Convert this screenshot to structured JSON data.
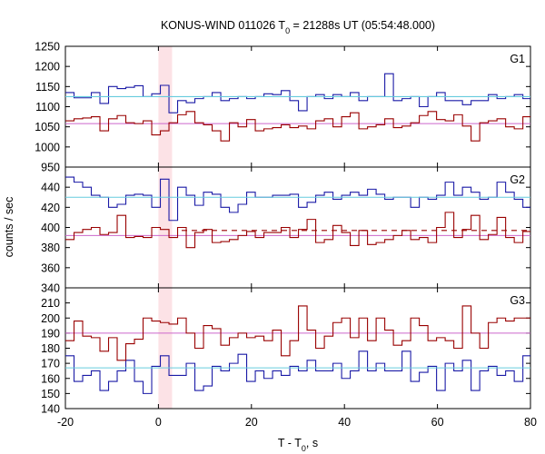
{
  "chart_data": {
    "type": "line",
    "title": "KONUS-WIND 011026 T",
    "title_sub": "0",
    "title_rest": " = 21288s UT (05:54:48.000)",
    "xlabel": "T - T",
    "xlabel_sub": "0",
    "xlabel_rest": ", s",
    "ylabel": "counts / sec",
    "xlim": [
      -20,
      80
    ],
    "xticks": [
      "-20",
      "0",
      "20",
      "40",
      "60",
      "80"
    ],
    "highlight_interval": [
      0,
      2.944
    ],
    "panels": [
      {
        "label": "G1",
        "ylim": [
          950,
          1250
        ],
        "yticks": [
          950,
          1000,
          1050,
          1100,
          1150,
          1200,
          1250
        ],
        "ytick_labels": [
          "950",
          "1000",
          "1050",
          "1100",
          "1150",
          "1200",
          "1250"
        ],
        "series": [
          {
            "color": "#1a1aa6",
            "values": [
              1135,
              1122,
              1122,
              1135,
              1108,
              1150,
              1145,
              1148,
              1152,
              1125,
              1132,
              1153,
              1085,
              1115,
              1110,
              1120,
              1125,
              1135,
              1115,
              1120,
              1125,
              1120,
              1125,
              1132,
              1130,
              1140,
              1115,
              1090,
              1125,
              1130,
              1120,
              1130,
              1125,
              1135,
              1115,
              1125,
              1125,
              1182,
              1115,
              1120,
              1125,
              1100,
              1125,
              1135,
              1115,
              1115,
              1105,
              1115,
              1115,
              1130,
              1120,
              1125,
              1130,
              1120
            ]
          },
          {
            "color": "#cc66cc",
            "values": [
              1058,
              1058,
              1058,
              1058,
              1058,
              1058,
              1058,
              1058,
              1058,
              1058,
              1058,
              1058,
              1058,
              1058,
              1058,
              1058,
              1058,
              1058,
              1058,
              1058,
              1058,
              1058,
              1058,
              1058,
              1058,
              1058,
              1058,
              1058,
              1058,
              1058,
              1058,
              1058,
              1058,
              1058,
              1058,
              1058,
              1058,
              1058,
              1058,
              1058,
              1058,
              1058,
              1058,
              1058,
              1058,
              1058,
              1058,
              1058,
              1058,
              1058,
              1058,
              1058,
              1058,
              1058
            ]
          },
          {
            "color": "#66ccdd",
            "values": [
              1125,
              1125,
              1125,
              1125,
              1125,
              1125,
              1125,
              1125,
              1125,
              1125,
              1125,
              1125,
              1125,
              1125,
              1125,
              1125,
              1125,
              1125,
              1125,
              1125,
              1125,
              1125,
              1125,
              1125,
              1125,
              1125,
              1125,
              1125,
              1125,
              1125,
              1125,
              1125,
              1125,
              1125,
              1125,
              1125,
              1125,
              1125,
              1125,
              1125,
              1125,
              1125,
              1125,
              1125,
              1125,
              1125,
              1125,
              1125,
              1125,
              1125,
              1125,
              1125,
              1125,
              1125
            ]
          },
          {
            "color": "#990000",
            "values": [
              1065,
              1070,
              1072,
              1075,
              1040,
              1070,
              1078,
              1060,
              1058,
              1065,
              1030,
              1040,
              1060,
              1080,
              1088,
              1060,
              1055,
              1040,
              1015,
              1060,
              1050,
              1068,
              1040,
              1045,
              1048,
              1055,
              1048,
              1052,
              1045,
              1065,
              1070,
              1050,
              1075,
              1085,
              1045,
              1050,
              1055,
              1070,
              1048,
              1052,
              1060,
              1078,
              1088,
              1068,
              1065,
              1080,
              1052,
              1015,
              1060,
              1065,
              1070,
              1050,
              1045,
              1075,
              1038
            ]
          }
        ]
      },
      {
        "label": "G2",
        "ylim": [
          340,
          460
        ],
        "yticks": [
          340,
          360,
          380,
          400,
          420,
          440
        ],
        "ytick_labels": [
          "340",
          "360",
          "380",
          "400",
          "420",
          "440"
        ],
        "series": [
          {
            "color": "#1a1aa6",
            "values": [
              450,
              445,
              440,
              432,
              430,
              420,
              423,
              432,
              433,
              432,
              420,
              448,
              407,
              440,
              432,
              422,
              435,
              433,
              420,
              415,
              423,
              435,
              430,
              430,
              432,
              432,
              433,
              420,
              425,
              432,
              435,
              428,
              432,
              435,
              432,
              438,
              433,
              428,
              430,
              430,
              420,
              430,
              428,
              432,
              445,
              432,
              440,
              435,
              428,
              430,
              445,
              435,
              428,
              420
            ]
          },
          {
            "color": "#cc66cc",
            "values": [
              392,
              392,
              392,
              392,
              392,
              392,
              392,
              392,
              392,
              392,
              392,
              392,
              392,
              392,
              392,
              392,
              392,
              392,
              392,
              392,
              392,
              392,
              392,
              392,
              392,
              392,
              392,
              392,
              392,
              392,
              392,
              392,
              392,
              392,
              392,
              392,
              392,
              392,
              392,
              392,
              392,
              392,
              392,
              392,
              392,
              392,
              392,
              392,
              392,
              392,
              392,
              392,
              392,
              392
            ]
          },
          {
            "color": "#66ccdd",
            "values": [
              430,
              430,
              430,
              430,
              430,
              430,
              430,
              430,
              430,
              430,
              430,
              430,
              430,
              430,
              430,
              430,
              430,
              430,
              430,
              430,
              430,
              430,
              430,
              430,
              430,
              430,
              430,
              430,
              430,
              430,
              430,
              430,
              430,
              430,
              430,
              430,
              430,
              430,
              430,
              430,
              430,
              430,
              430,
              430,
              430,
              430,
              430,
              430,
              430,
              430,
              430,
              430,
              430,
              430
            ]
          },
          {
            "color": "#990000",
            "values": [
              388,
              395,
              398,
              400,
              393,
              395,
              412,
              390,
              391,
              390,
              400,
              398,
              390,
              400,
              380,
              395,
              398,
              385,
              386,
              388,
              392,
              396,
              390,
              395,
              395,
              400,
              390,
              398,
              408,
              385,
              388,
              402,
              395,
              382,
              397,
              383,
              385,
              388,
              392,
              397,
              388,
              390,
              385,
              400,
              415,
              390,
              398,
              412,
              388,
              393,
              410,
              390,
              385,
              396,
              370
            ]
          }
        ],
        "dashed_line": {
          "color": "#990000",
          "x_from": 5,
          "value": 397
        }
      },
      {
        "label": "G3",
        "ylim": [
          140,
          220
        ],
        "yticks": [
          140,
          150,
          160,
          170,
          180,
          190,
          200,
          210,
          220
        ],
        "ytick_labels": [
          "140",
          "150",
          "160",
          "170",
          "180",
          "190",
          "200",
          "210",
          ""
        ],
        "series": [
          {
            "color": "#1a1aa6",
            "values": [
              175,
              158,
              162,
              165,
              152,
              158,
              165,
              172,
              158,
              150,
              168,
              175,
              162,
              162,
              170,
              152,
              155,
              168,
              165,
              170,
              176,
              158,
              165,
              160,
              165,
              162,
              168,
              165,
              172,
              165,
              165,
              170,
              160,
              165,
              178,
              165,
              170,
              165,
              165,
              178,
              158,
              164,
              168,
              152,
              170,
              165,
              172,
              152,
              165,
              168,
              162,
              165,
              158,
              175,
              165
            ]
          },
          {
            "color": "#cc66cc",
            "values": [
              190,
              190,
              190,
              190,
              190,
              190,
              190,
              190,
              190,
              190,
              190,
              190,
              190,
              190,
              190,
              190,
              190,
              190,
              190,
              190,
              190,
              190,
              190,
              190,
              190,
              190,
              190,
              190,
              190,
              190,
              190,
              190,
              190,
              190,
              190,
              190,
              190,
              190,
              190,
              190,
              190,
              190,
              190,
              190,
              190,
              190,
              190,
              190,
              190,
              190,
              190,
              190,
              190,
              190
            ]
          },
          {
            "color": "#66ccdd",
            "values": [
              167,
              167,
              167,
              167,
              167,
              167,
              167,
              167,
              167,
              167,
              167,
              167,
              167,
              167,
              167,
              167,
              167,
              167,
              167,
              167,
              167,
              167,
              167,
              167,
              167,
              167,
              167,
              167,
              167,
              167,
              167,
              167,
              167,
              167,
              167,
              167,
              167,
              167,
              167,
              167,
              167,
              167,
              167,
              167,
              167,
              167,
              167,
              167,
              167,
              167,
              167,
              167,
              167,
              167
            ]
          },
          {
            "color": "#990000",
            "values": [
              185,
              198,
              188,
              187,
              178,
              187,
              172,
              183,
              186,
              200,
              198,
              197,
              196,
              200,
              190,
              180,
              195,
              193,
              182,
              187,
              190,
              187,
              188,
              185,
              192,
              175,
              185,
              208,
              192,
              180,
              188,
              197,
              200,
              187,
              200,
              185,
              200,
              192,
              182,
              185,
              200,
              195,
              185,
              187,
              185,
              180,
              208,
              190,
              180,
              197,
              200,
              198,
              200,
              200,
              190
            ]
          }
        ]
      }
    ]
  }
}
